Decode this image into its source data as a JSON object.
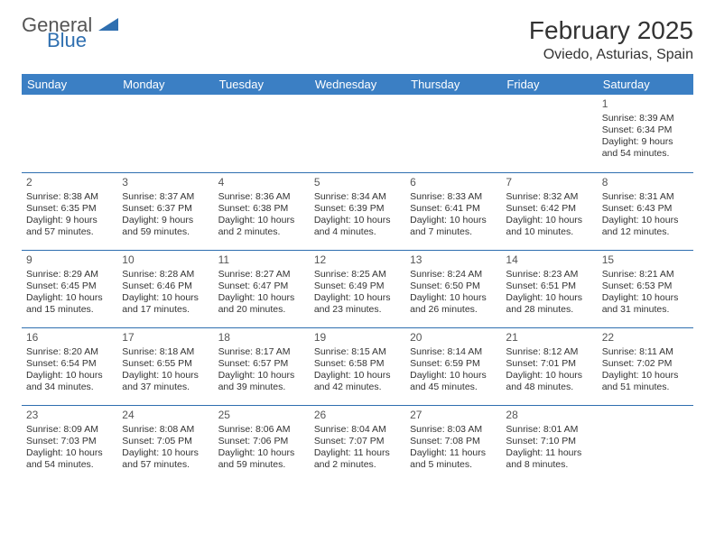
{
  "brand": {
    "line1": "General",
    "line2": "Blue",
    "triangle_color": "#2f6fb0"
  },
  "title": "February 2025",
  "location": "Oviedo, Asturias, Spain",
  "header_bg": "#3b7fc4",
  "header_fg": "#ffffff",
  "rule_color": "#2f6fb0",
  "weekdays": [
    "Sunday",
    "Monday",
    "Tuesday",
    "Wednesday",
    "Thursday",
    "Friday",
    "Saturday"
  ],
  "first_weekday_index": 6,
  "days": [
    {
      "n": 1,
      "sunrise": "8:39 AM",
      "sunset": "6:34 PM",
      "daylight": "9 hours and 54 minutes."
    },
    {
      "n": 2,
      "sunrise": "8:38 AM",
      "sunset": "6:35 PM",
      "daylight": "9 hours and 57 minutes."
    },
    {
      "n": 3,
      "sunrise": "8:37 AM",
      "sunset": "6:37 PM",
      "daylight": "9 hours and 59 minutes."
    },
    {
      "n": 4,
      "sunrise": "8:36 AM",
      "sunset": "6:38 PM",
      "daylight": "10 hours and 2 minutes."
    },
    {
      "n": 5,
      "sunrise": "8:34 AM",
      "sunset": "6:39 PM",
      "daylight": "10 hours and 4 minutes."
    },
    {
      "n": 6,
      "sunrise": "8:33 AM",
      "sunset": "6:41 PM",
      "daylight": "10 hours and 7 minutes."
    },
    {
      "n": 7,
      "sunrise": "8:32 AM",
      "sunset": "6:42 PM",
      "daylight": "10 hours and 10 minutes."
    },
    {
      "n": 8,
      "sunrise": "8:31 AM",
      "sunset": "6:43 PM",
      "daylight": "10 hours and 12 minutes."
    },
    {
      "n": 9,
      "sunrise": "8:29 AM",
      "sunset": "6:45 PM",
      "daylight": "10 hours and 15 minutes."
    },
    {
      "n": 10,
      "sunrise": "8:28 AM",
      "sunset": "6:46 PM",
      "daylight": "10 hours and 17 minutes."
    },
    {
      "n": 11,
      "sunrise": "8:27 AM",
      "sunset": "6:47 PM",
      "daylight": "10 hours and 20 minutes."
    },
    {
      "n": 12,
      "sunrise": "8:25 AM",
      "sunset": "6:49 PM",
      "daylight": "10 hours and 23 minutes."
    },
    {
      "n": 13,
      "sunrise": "8:24 AM",
      "sunset": "6:50 PM",
      "daylight": "10 hours and 26 minutes."
    },
    {
      "n": 14,
      "sunrise": "8:23 AM",
      "sunset": "6:51 PM",
      "daylight": "10 hours and 28 minutes."
    },
    {
      "n": 15,
      "sunrise": "8:21 AM",
      "sunset": "6:53 PM",
      "daylight": "10 hours and 31 minutes."
    },
    {
      "n": 16,
      "sunrise": "8:20 AM",
      "sunset": "6:54 PM",
      "daylight": "10 hours and 34 minutes."
    },
    {
      "n": 17,
      "sunrise": "8:18 AM",
      "sunset": "6:55 PM",
      "daylight": "10 hours and 37 minutes."
    },
    {
      "n": 18,
      "sunrise": "8:17 AM",
      "sunset": "6:57 PM",
      "daylight": "10 hours and 39 minutes."
    },
    {
      "n": 19,
      "sunrise": "8:15 AM",
      "sunset": "6:58 PM",
      "daylight": "10 hours and 42 minutes."
    },
    {
      "n": 20,
      "sunrise": "8:14 AM",
      "sunset": "6:59 PM",
      "daylight": "10 hours and 45 minutes."
    },
    {
      "n": 21,
      "sunrise": "8:12 AM",
      "sunset": "7:01 PM",
      "daylight": "10 hours and 48 minutes."
    },
    {
      "n": 22,
      "sunrise": "8:11 AM",
      "sunset": "7:02 PM",
      "daylight": "10 hours and 51 minutes."
    },
    {
      "n": 23,
      "sunrise": "8:09 AM",
      "sunset": "7:03 PM",
      "daylight": "10 hours and 54 minutes."
    },
    {
      "n": 24,
      "sunrise": "8:08 AM",
      "sunset": "7:05 PM",
      "daylight": "10 hours and 57 minutes."
    },
    {
      "n": 25,
      "sunrise": "8:06 AM",
      "sunset": "7:06 PM",
      "daylight": "10 hours and 59 minutes."
    },
    {
      "n": 26,
      "sunrise": "8:04 AM",
      "sunset": "7:07 PM",
      "daylight": "11 hours and 2 minutes."
    },
    {
      "n": 27,
      "sunrise": "8:03 AM",
      "sunset": "7:08 PM",
      "daylight": "11 hours and 5 minutes."
    },
    {
      "n": 28,
      "sunrise": "8:01 AM",
      "sunset": "7:10 PM",
      "daylight": "11 hours and 8 minutes."
    }
  ],
  "labels": {
    "sunrise": "Sunrise:",
    "sunset": "Sunset:",
    "daylight": "Daylight:"
  }
}
